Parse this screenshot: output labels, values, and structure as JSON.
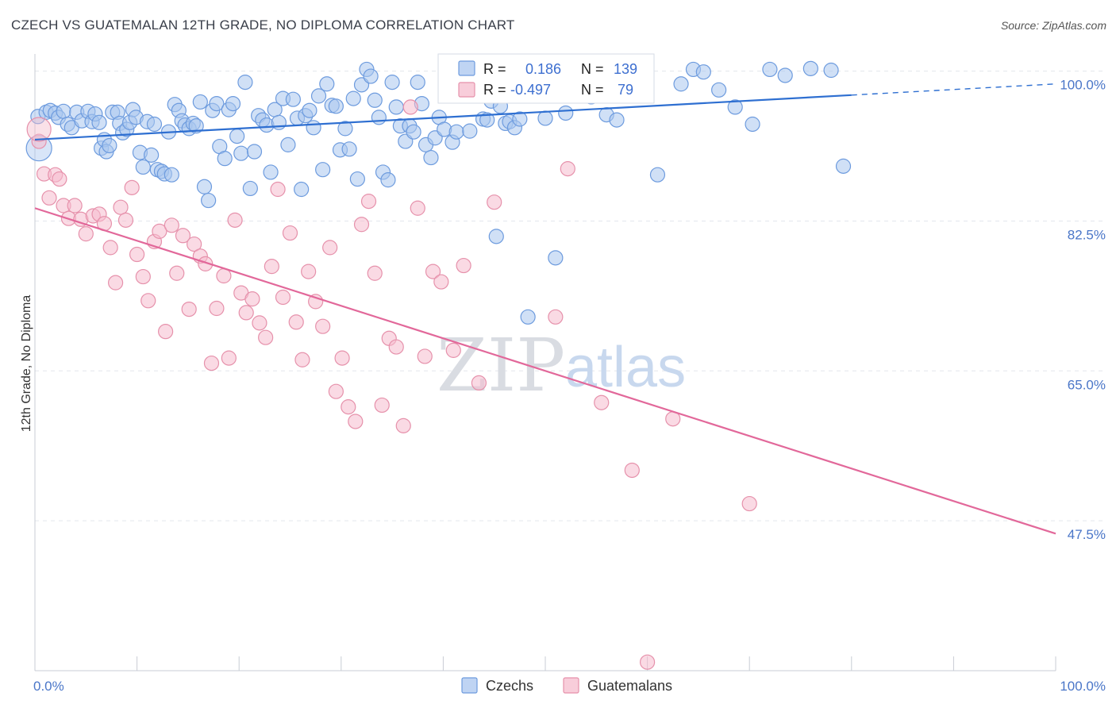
{
  "title": "CZECH VS GUATEMALAN 12TH GRADE, NO DIPLOMA CORRELATION CHART",
  "source": "Source: ZipAtlas.com",
  "watermark": {
    "zip": "ZIP",
    "atlas": "atlas"
  },
  "colors": {
    "czech_fill": "#a9c6ef",
    "czech_stroke": "#6d9bde",
    "czech_line": "#2e6fd1",
    "guat_fill": "#f5bccd",
    "guat_stroke": "#e691ab",
    "guat_line": "#e2689a",
    "tick_label": "#4a76c8"
  },
  "legend": {
    "rows": [
      {
        "r_label": "R =",
        "r_value": "0.186",
        "n_label": "N =",
        "n_value": "139"
      },
      {
        "r_label": "R =",
        "r_value": "-0.497",
        "n_label": "N =",
        "n_value": "79"
      }
    ]
  },
  "bottom_legend": [
    "Czechs",
    "Guatemalans"
  ],
  "chart_data": {
    "type": "scatter",
    "title": "CZECH VS GUATEMALAN 12TH GRADE, NO DIPLOMA CORRELATION CHART",
    "xlabel": "",
    "ylabel": "12th Grade, No Diploma",
    "xlim": [
      0,
      100
    ],
    "ylim": [
      30,
      102
    ],
    "x_tick_labels": [
      "0.0%",
      "100.0%"
    ],
    "y_ticks": [
      47.5,
      65.0,
      82.5,
      100.0
    ],
    "y_tick_labels": [
      "47.5%",
      "65.0%",
      "82.5%",
      "100.0%"
    ],
    "grid": true,
    "series": [
      {
        "name": "Czechs",
        "trend": {
          "x0": 0,
          "y0": 92.0,
          "x1": 80,
          "y1": 97.2,
          "dashed_to_x": 100,
          "dashed_y1": 98.5
        },
        "points": [
          [
            0.3,
            94.7
          ],
          [
            1.1,
            95.2
          ],
          [
            1.5,
            95.4
          ],
          [
            2.0,
            95.1
          ],
          [
            2.3,
            94.6
          ],
          [
            2.8,
            95.3
          ],
          [
            3.2,
            93.8
          ],
          [
            3.6,
            93.4
          ],
          [
            4.1,
            95.2
          ],
          [
            4.6,
            94.2
          ],
          [
            5.2,
            95.3
          ],
          [
            5.6,
            94.1
          ],
          [
            5.9,
            95.0
          ],
          [
            6.3,
            94.0
          ],
          [
            6.5,
            91.0
          ],
          [
            6.8,
            92.0
          ],
          [
            7.0,
            90.6
          ],
          [
            7.3,
            91.3
          ],
          [
            7.6,
            95.2
          ],
          [
            8.1,
            95.2
          ],
          [
            8.3,
            93.9
          ],
          [
            8.6,
            92.8
          ],
          [
            9.0,
            93.2
          ],
          [
            9.3,
            94.0
          ],
          [
            9.6,
            95.5
          ],
          [
            9.9,
            94.6
          ],
          [
            10.3,
            90.5
          ],
          [
            10.6,
            88.8
          ],
          [
            11.0,
            94.1
          ],
          [
            11.4,
            90.2
          ],
          [
            11.7,
            93.8
          ],
          [
            12.0,
            88.5
          ],
          [
            12.4,
            88.3
          ],
          [
            12.7,
            88.0
          ],
          [
            13.1,
            92.9
          ],
          [
            13.4,
            87.9
          ],
          [
            13.7,
            96.1
          ],
          [
            14.1,
            95.4
          ],
          [
            14.4,
            94.2
          ],
          [
            14.7,
            93.7
          ],
          [
            15.1,
            93.3
          ],
          [
            15.5,
            93.9
          ],
          [
            15.8,
            93.6
          ],
          [
            16.2,
            96.4
          ],
          [
            16.6,
            86.5
          ],
          [
            17.0,
            84.9
          ],
          [
            17.4,
            95.4
          ],
          [
            17.8,
            96.2
          ],
          [
            18.1,
            91.2
          ],
          [
            18.6,
            89.8
          ],
          [
            19.0,
            95.5
          ],
          [
            19.4,
            96.2
          ],
          [
            19.8,
            92.4
          ],
          [
            20.2,
            90.4
          ],
          [
            20.6,
            98.7
          ],
          [
            21.1,
            86.3
          ],
          [
            21.5,
            90.6
          ],
          [
            21.9,
            94.8
          ],
          [
            22.3,
            94.3
          ],
          [
            22.7,
            93.7
          ],
          [
            23.1,
            88.2
          ],
          [
            23.5,
            95.5
          ],
          [
            23.9,
            94.0
          ],
          [
            24.3,
            96.8
          ],
          [
            24.8,
            91.4
          ],
          [
            25.3,
            96.7
          ],
          [
            25.7,
            94.5
          ],
          [
            26.1,
            86.2
          ],
          [
            26.5,
            94.8
          ],
          [
            26.9,
            95.4
          ],
          [
            27.3,
            93.4
          ],
          [
            27.8,
            97.1
          ],
          [
            28.2,
            88.5
          ],
          [
            28.6,
            98.5
          ],
          [
            29.1,
            96.0
          ],
          [
            29.5,
            95.9
          ],
          [
            29.9,
            90.8
          ],
          [
            30.4,
            93.3
          ],
          [
            30.8,
            90.9
          ],
          [
            31.2,
            96.8
          ],
          [
            31.6,
            87.4
          ],
          [
            32.0,
            98.4
          ],
          [
            32.5,
            100.2
          ],
          [
            32.9,
            99.4
          ],
          [
            33.3,
            96.6
          ],
          [
            33.7,
            94.6
          ],
          [
            34.1,
            88.2
          ],
          [
            34.6,
            87.3
          ],
          [
            35.0,
            98.7
          ],
          [
            35.4,
            95.8
          ],
          [
            35.8,
            93.6
          ],
          [
            36.3,
            91.8
          ],
          [
            36.7,
            93.6
          ],
          [
            37.1,
            92.9
          ],
          [
            37.5,
            98.7
          ],
          [
            37.9,
            96.2
          ],
          [
            38.3,
            91.4
          ],
          [
            38.8,
            89.9
          ],
          [
            39.2,
            92.2
          ],
          [
            39.6,
            94.6
          ],
          [
            40.1,
            93.2
          ],
          [
            40.5,
            97.5
          ],
          [
            40.9,
            91.7
          ],
          [
            41.3,
            92.9
          ],
          [
            41.8,
            98.6
          ],
          [
            42.2,
            99.8
          ],
          [
            42.6,
            93.0
          ],
          [
            43.0,
            100.2
          ],
          [
            43.4,
            98.5
          ],
          [
            43.9,
            94.4
          ],
          [
            44.3,
            94.3
          ],
          [
            44.7,
            96.5
          ],
          [
            45.2,
            80.7
          ],
          [
            45.6,
            95.9
          ],
          [
            46.1,
            93.9
          ],
          [
            46.5,
            94.1
          ],
          [
            47.0,
            93.4
          ],
          [
            47.5,
            94.4
          ],
          [
            48.3,
            71.3
          ],
          [
            50.0,
            94.5
          ],
          [
            51.0,
            78.2
          ],
          [
            52.0,
            95.1
          ],
          [
            53.0,
            99.8
          ],
          [
            54.5,
            97.0
          ],
          [
            56.0,
            94.9
          ],
          [
            57.0,
            94.3
          ],
          [
            58.5,
            97.9
          ],
          [
            59.0,
            99.6
          ],
          [
            61.0,
            87.9
          ],
          [
            63.3,
            98.5
          ],
          [
            64.5,
            100.2
          ],
          [
            65.5,
            99.9
          ],
          [
            67.0,
            97.8
          ],
          [
            68.6,
            95.8
          ],
          [
            70.3,
            93.8
          ],
          [
            72.0,
            100.2
          ],
          [
            73.5,
            99.5
          ],
          [
            76.0,
            100.3
          ],
          [
            78.0,
            100.1
          ],
          [
            79.2,
            88.9
          ]
        ]
      },
      {
        "name": "Guatemalans",
        "trend": {
          "x0": 0,
          "y0": 84.0,
          "x1": 100,
          "y1": 46.0
        },
        "points": [
          [
            0.4,
            91.8
          ],
          [
            0.9,
            88.0
          ],
          [
            1.4,
            85.2
          ],
          [
            2.0,
            87.9
          ],
          [
            2.4,
            87.4
          ],
          [
            2.8,
            84.3
          ],
          [
            3.3,
            82.8
          ],
          [
            3.9,
            84.3
          ],
          [
            4.5,
            82.7
          ],
          [
            5.0,
            81.0
          ],
          [
            5.7,
            83.1
          ],
          [
            6.3,
            83.3
          ],
          [
            6.8,
            82.2
          ],
          [
            7.4,
            79.4
          ],
          [
            7.9,
            75.3
          ],
          [
            8.4,
            84.1
          ],
          [
            8.9,
            82.6
          ],
          [
            9.5,
            86.4
          ],
          [
            10.0,
            78.6
          ],
          [
            10.6,
            76.0
          ],
          [
            11.1,
            73.2
          ],
          [
            11.7,
            80.1
          ],
          [
            12.2,
            81.3
          ],
          [
            12.8,
            69.6
          ],
          [
            13.4,
            82.0
          ],
          [
            13.9,
            76.4
          ],
          [
            14.5,
            80.8
          ],
          [
            15.1,
            72.2
          ],
          [
            15.6,
            79.8
          ],
          [
            16.2,
            78.4
          ],
          [
            16.7,
            77.5
          ],
          [
            17.3,
            65.9
          ],
          [
            17.8,
            72.3
          ],
          [
            18.5,
            76.1
          ],
          [
            19.0,
            66.5
          ],
          [
            19.6,
            82.6
          ],
          [
            20.2,
            74.1
          ],
          [
            20.7,
            71.8
          ],
          [
            21.3,
            73.4
          ],
          [
            22.0,
            70.6
          ],
          [
            22.6,
            68.9
          ],
          [
            23.2,
            77.2
          ],
          [
            23.8,
            86.2
          ],
          [
            24.3,
            73.6
          ],
          [
            25.0,
            81.1
          ],
          [
            25.6,
            70.7
          ],
          [
            26.2,
            66.3
          ],
          [
            26.8,
            76.6
          ],
          [
            27.5,
            73.1
          ],
          [
            28.2,
            70.2
          ],
          [
            28.9,
            79.4
          ],
          [
            29.5,
            62.6
          ],
          [
            30.1,
            66.5
          ],
          [
            30.7,
            60.8
          ],
          [
            31.4,
            59.1
          ],
          [
            32.0,
            82.1
          ],
          [
            32.7,
            84.8
          ],
          [
            33.3,
            76.4
          ],
          [
            34.0,
            61.0
          ],
          [
            34.7,
            68.8
          ],
          [
            35.4,
            67.8
          ],
          [
            36.1,
            58.6
          ],
          [
            36.8,
            95.8
          ],
          [
            37.5,
            84.0
          ],
          [
            38.2,
            66.7
          ],
          [
            39.0,
            76.6
          ],
          [
            39.8,
            75.4
          ],
          [
            41.0,
            67.4
          ],
          [
            42.0,
            77.3
          ],
          [
            43.5,
            63.6
          ],
          [
            45.0,
            84.7
          ],
          [
            47.0,
            98.6
          ],
          [
            51.0,
            71.3
          ],
          [
            52.2,
            88.6
          ],
          [
            55.5,
            61.3
          ],
          [
            58.5,
            53.4
          ],
          [
            60.0,
            31.0
          ],
          [
            62.5,
            59.4
          ],
          [
            70.0,
            49.5
          ]
        ]
      }
    ]
  }
}
